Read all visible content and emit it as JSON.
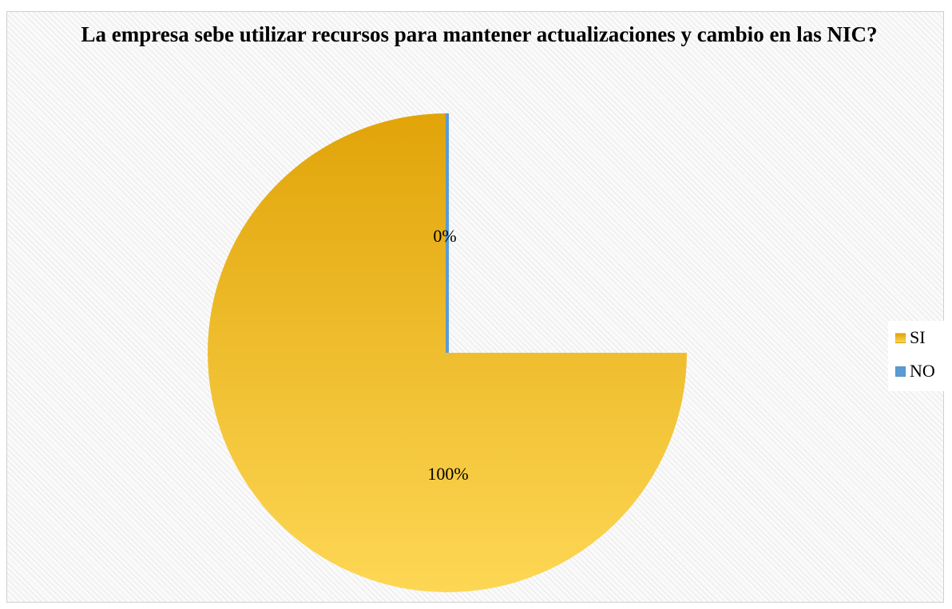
{
  "chart_data": {
    "type": "pie",
    "title": "La empresa sebe utilizar recursos para mantener actualizaciones y cambio en las NIC?",
    "categories": [
      "SI",
      "NO"
    ],
    "values": [
      100,
      0
    ],
    "data_labels": [
      "100%",
      "0%"
    ],
    "colors": [
      "#e6ab1c",
      "#5b9bd5"
    ],
    "legend": "right"
  }
}
